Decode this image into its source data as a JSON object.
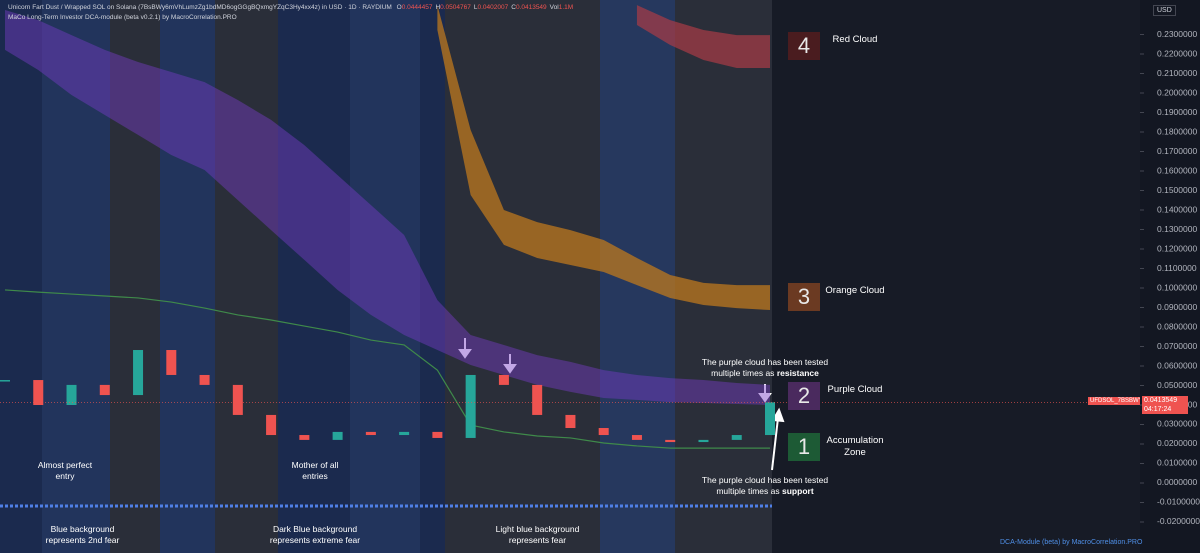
{
  "header": {
    "title": "Unicorn Fart Dust / Wrapped SOL on Solana (7BsBWy6mVhLumzZg1bdMD6ogGGgBQxmgYZqC3Hy4xx4z) in USD · 1D · RAYDIUM",
    "ohlc": [
      {
        "label": "O",
        "value": 0.0444457
      },
      {
        "label": "H",
        "value": 0.0504767
      },
      {
        "label": "L",
        "value": 0.0402007
      },
      {
        "label": "C",
        "value": 0.0413549
      },
      {
        "label": "Vol",
        "value": "1.1M"
      }
    ],
    "indicator": "MaCo Long-Term Investor DCA-module (beta v0.2.1) by MacroCorrelation.PRO",
    "currency": "USD"
  },
  "chart_data": {
    "type": "candlestick",
    "ylim": [
      -0.0359,
      0.2477
    ],
    "yticks": [
      {
        "value": 0.23,
        "label": "0.2300000"
      },
      {
        "value": 0.22,
        "label": "0.2200000"
      },
      {
        "value": 0.21,
        "label": "0.2100000"
      },
      {
        "value": 0.2,
        "label": "0.2000000"
      },
      {
        "value": 0.19,
        "label": "0.1900000"
      },
      {
        "value": 0.18,
        "label": "0.1800000"
      },
      {
        "value": 0.17,
        "label": "0.1700000"
      },
      {
        "value": 0.16,
        "label": "0.1600000"
      },
      {
        "value": 0.15,
        "label": "0.1500000"
      },
      {
        "value": 0.14,
        "label": "0.1400000"
      },
      {
        "value": 0.13,
        "label": "0.1300000"
      },
      {
        "value": 0.12,
        "label": "0.1200000"
      },
      {
        "value": 0.11,
        "label": "0.1100000"
      },
      {
        "value": 0.1,
        "label": "0.1000000"
      },
      {
        "value": 0.09,
        "label": "0.0900000"
      },
      {
        "value": 0.08,
        "label": "0.0800000"
      },
      {
        "value": 0.07,
        "label": "0.0700000"
      },
      {
        "value": 0.06,
        "label": "0.0600000"
      },
      {
        "value": 0.05,
        "label": "0.0500000"
      },
      {
        "value": 0.04,
        "label": "0.0400000"
      },
      {
        "value": 0.03,
        "label": "0.0300000"
      },
      {
        "value": 0.02,
        "label": "0.0200000"
      },
      {
        "value": 0.01,
        "label": "0.0100000"
      },
      {
        "value": 0,
        "label": "0.0000000"
      },
      {
        "value": -0.01,
        "label": "-0.0100000"
      },
      {
        "value": -0.02,
        "label": "-0.0200000"
      }
    ],
    "grid": false,
    "values": [
      0.0528,
      0.04,
      0.0503,
      0.0451,
      0.0682,
      0.0554,
      0.0503,
      0.0349,
      0.0246,
      0.0221,
      0.0262,
      0.0246,
      0.0262,
      0.0231,
      0.0554,
      0.0503,
      0.0349,
      0.0282,
      0.0246,
      0.0221,
      0.021,
      0.0221,
      0.0246,
      0.0413549
    ],
    "up_color": "#26a69a",
    "down_color": "#ef5350",
    "ma": {
      "color": "#3f8a4a",
      "values": [
        0.099,
        0.0979,
        0.0969,
        0.0959,
        0.0949,
        0.0928,
        0.0897,
        0.0862,
        0.0836,
        0.0805,
        0.0774,
        0.0733,
        0.0708,
        0.0579,
        0.0297,
        0.0262,
        0.0241,
        0.0231,
        0.0205,
        0.019,
        0.0179,
        0.0179,
        0.0179,
        0.0179
      ]
    },
    "bands": [
      {
        "color": "rgba(120,60,200,0.45)",
        "upper": [
          0.2426,
          0.2374,
          0.2297,
          0.2221,
          0.2159,
          0.2108,
          0.2056,
          0.1964,
          0.1862,
          0.1733,
          0.1579,
          0.1426,
          0.1272,
          0.0938,
          0.0759,
          0.0708,
          0.0656,
          0.0621,
          0.0579,
          0.0554,
          0.0538,
          0.0528,
          0.0513,
          0.0503
        ],
        "lower": [
          0.2221,
          0.2118,
          0.199,
          0.1887,
          0.1785,
          0.1682,
          0.1605,
          0.1451,
          0.1297,
          0.1144,
          0.099,
          0.0862,
          0.0759,
          0.0682,
          0.0605,
          0.0554,
          0.0503,
          0.0467,
          0.0436,
          0.0426,
          0.0415,
          0.041,
          0.0405,
          0.04
        ]
      },
      {
        "color": "rgba(190,120,30,0.75)",
        "upper": [
          null,
          null,
          null,
          null,
          null,
          null,
          null,
          null,
          null,
          null,
          null,
          null,
          null,
          0.245,
          0.181,
          0.14,
          0.1338,
          0.1297,
          0.1246,
          0.1154,
          0.1067,
          0.1026,
          0.1015,
          0.1015
        ],
        "lower": [
          null,
          null,
          null,
          null,
          null,
          null,
          null,
          null,
          null,
          null,
          null,
          null,
          null,
          0.2323,
          0.1477,
          0.1221,
          0.1154,
          0.1118,
          0.1082,
          0.1015,
          0.0949,
          0.0913,
          0.0897,
          0.0887
        ]
      },
      {
        "color": "rgba(170,60,70,0.7)",
        "upper": [
          null,
          null,
          null,
          null,
          null,
          null,
          null,
          null,
          null,
          null,
          null,
          null,
          null,
          null,
          null,
          null,
          null,
          null,
          null,
          0.2451,
          0.2374,
          0.2323,
          0.2297,
          0.2297
        ],
        "lower": [
          null,
          null,
          null,
          null,
          null,
          null,
          null,
          null,
          null,
          null,
          null,
          null,
          null,
          null,
          null,
          null,
          null,
          null,
          null,
          0.2349,
          0.2246,
          0.2169,
          0.2128,
          0.2128
        ]
      }
    ],
    "last_price": {
      "symbol": "UFDSOL_7BSBWY.USD",
      "value": 0.0413549,
      "countdown": "04:17:24"
    }
  },
  "annotations": [
    {
      "number": "4",
      "label": "Red Cloud",
      "color": "#4a1c1f"
    },
    {
      "number": "3",
      "label": "Orange Cloud",
      "color": "#6b3a22"
    },
    {
      "number": "2",
      "label": "Purple Cloud",
      "color": "#4a2a5e"
    },
    {
      "number": "1",
      "label": "Accumulation Zone",
      "color": "#1d5a35"
    }
  ],
  "notes": {
    "entry": "Almost perfect entry",
    "mother": "Mother of all entries",
    "blue": "Blue background represents 2nd fear",
    "dark_blue": "Dark Blue background represents extreme fear",
    "light_blue": "Light blue background represents fear",
    "resistance": {
      "text": "The purple cloud has been tested multiple times as",
      "emphasis": "resistance"
    },
    "support": {
      "text": "The purple cloud has been tested multiple times as",
      "emphasis": "support"
    }
  },
  "footer": "DCA-Module (beta) by MacroCorrelation.PRO"
}
